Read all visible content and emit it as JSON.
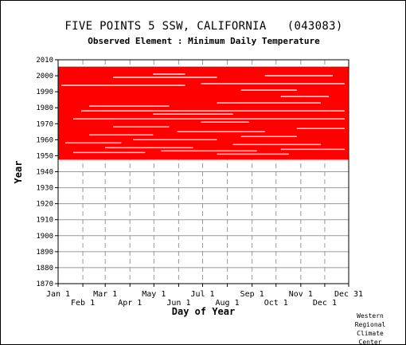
{
  "chart_data": {
    "type": "heatmap",
    "title": "FIVE POINTS 5 SSW, CALIFORNIA   (043083)",
    "subtitle": "Observed Element : Minimum Daily Temperature",
    "xlabel": "Day of Year",
    "ylabel": "Year",
    "x_ticks_upper": [
      "Jan 1",
      "Mar 1",
      "May 1",
      "Jul 1",
      "Sep 1",
      "Nov 1",
      "Dec 31"
    ],
    "x_ticks_lower": [
      "Feb 1",
      "Apr 1",
      "Jun 1",
      "Aug 1",
      "Oct 1",
      "Dec 1"
    ],
    "x_tick_days_upper": [
      1,
      60,
      121,
      182,
      244,
      305,
      365
    ],
    "x_tick_days_lower": [
      32,
      91,
      152,
      213,
      274,
      335
    ],
    "y_ticks": [
      1870,
      1880,
      1890,
      1900,
      1910,
      1920,
      1930,
      1940,
      1950,
      1960,
      1970,
      1980,
      1990,
      2000,
      2010
    ],
    "xlim": [
      1,
      365
    ],
    "ylim": [
      1870,
      2010
    ],
    "grid": true,
    "data_color": "#ff0000",
    "data_years": [
      1948,
      2005
    ],
    "missing_rows": [
      {
        "year": 1951,
        "start": 200,
        "end": 290
      },
      {
        "year": 1952,
        "start": 20,
        "end": 110
      },
      {
        "year": 1953,
        "start": 130,
        "end": 250
      },
      {
        "year": 1954,
        "start": 280,
        "end": 360
      },
      {
        "year": 1955,
        "start": 60,
        "end": 170
      },
      {
        "year": 1957,
        "start": 220,
        "end": 330
      },
      {
        "year": 1958,
        "start": 10,
        "end": 80
      },
      {
        "year": 1960,
        "start": 95,
        "end": 200
      },
      {
        "year": 1962,
        "start": 230,
        "end": 300
      },
      {
        "year": 1963,
        "start": 40,
        "end": 120
      },
      {
        "year": 1965,
        "start": 150,
        "end": 260
      },
      {
        "year": 1967,
        "start": 300,
        "end": 360
      },
      {
        "year": 1968,
        "start": 70,
        "end": 140
      },
      {
        "year": 1971,
        "start": 180,
        "end": 240
      },
      {
        "year": 1973,
        "start": 20,
        "end": 360
      },
      {
        "year": 1976,
        "start": 120,
        "end": 220
      },
      {
        "year": 1978,
        "start": 30,
        "end": 360
      },
      {
        "year": 1981,
        "start": 40,
        "end": 140
      },
      {
        "year": 1983,
        "start": 200,
        "end": 330
      },
      {
        "year": 1987,
        "start": 280,
        "end": 340
      },
      {
        "year": 1991,
        "start": 230,
        "end": 300
      },
      {
        "year": 1994,
        "start": 5,
        "end": 160
      },
      {
        "year": 1995,
        "start": 180,
        "end": 360
      },
      {
        "year": 1999,
        "start": 70,
        "end": 200
      },
      {
        "year": 2000,
        "start": 260,
        "end": 345
      },
      {
        "year": 2001,
        "start": 120,
        "end": 160
      }
    ],
    "credit": [
      "Western",
      "Regional",
      "Climate",
      "Center"
    ]
  }
}
